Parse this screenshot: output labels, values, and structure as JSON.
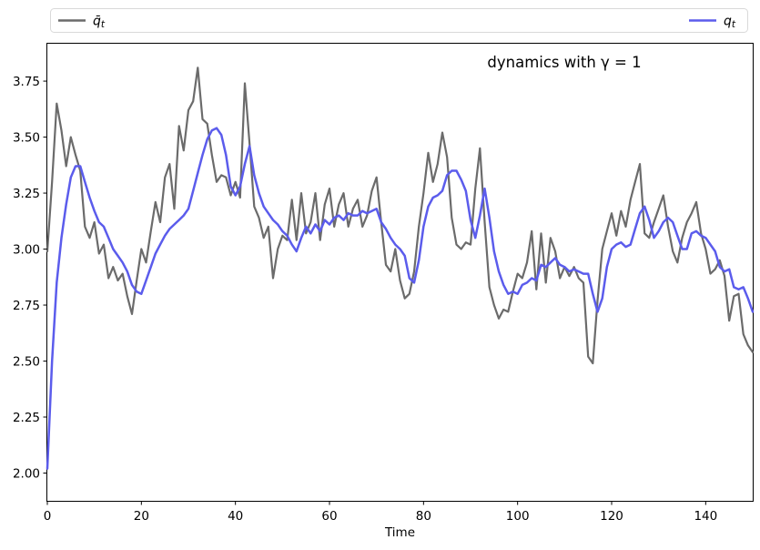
{
  "figure": {
    "annotation": "dynamics with γ = 1",
    "xlabel": "Time",
    "background": "#ffffff",
    "legend": {
      "position": "top, expanded full width, 2 columns",
      "border_color": "#d9d9d9",
      "items": [
        {
          "base": "q̄",
          "sub": "t",
          "color": "#6b6b6b"
        },
        {
          "base": "q",
          "sub": "t",
          "color": "#5b5cec"
        }
      ]
    }
  },
  "chart_data": {
    "type": "line",
    "title": "dynamics with γ = 1",
    "xlabel": "Time",
    "ylabel": "",
    "grid": false,
    "xlim": [
      0,
      150
    ],
    "ylim": [
      1.876,
      3.917
    ],
    "xticks": [
      {
        "v": 0,
        "label": "0"
      },
      {
        "v": 20,
        "label": "20"
      },
      {
        "v": 40,
        "label": "40"
      },
      {
        "v": 60,
        "label": "60"
      },
      {
        "v": 80,
        "label": "80"
      },
      {
        "v": 100,
        "label": "100"
      },
      {
        "v": 120,
        "label": "120"
      },
      {
        "v": 140,
        "label": "140"
      }
    ],
    "yticks": [
      {
        "v": 2.0,
        "label": "2.00"
      },
      {
        "v": 2.25,
        "label": "2.25"
      },
      {
        "v": 2.5,
        "label": "2.50"
      },
      {
        "v": 2.75,
        "label": "2.75"
      },
      {
        "v": 3.0,
        "label": "3.00"
      },
      {
        "v": 3.25,
        "label": "3.25"
      },
      {
        "v": 3.5,
        "label": "3.50"
      },
      {
        "v": 3.75,
        "label": "3.75"
      }
    ],
    "x": [
      0,
      1,
      2,
      3,
      4,
      5,
      6,
      7,
      8,
      9,
      10,
      11,
      12,
      13,
      14,
      15,
      16,
      17,
      18,
      19,
      20,
      21,
      22,
      23,
      24,
      25,
      26,
      27,
      28,
      29,
      30,
      31,
      32,
      33,
      34,
      35,
      36,
      37,
      38,
      39,
      40,
      41,
      42,
      43,
      44,
      45,
      46,
      47,
      48,
      49,
      50,
      51,
      52,
      53,
      54,
      55,
      56,
      57,
      58,
      59,
      60,
      61,
      62,
      63,
      64,
      65,
      66,
      67,
      68,
      69,
      70,
      71,
      72,
      73,
      74,
      75,
      76,
      77,
      78,
      79,
      80,
      81,
      82,
      83,
      84,
      85,
      86,
      87,
      88,
      89,
      90,
      91,
      92,
      93,
      94,
      95,
      96,
      97,
      98,
      99,
      100,
      101,
      102,
      103,
      104,
      105,
      106,
      107,
      108,
      109,
      110,
      111,
      112,
      113,
      114,
      115,
      116,
      117,
      118,
      119,
      120,
      121,
      122,
      123,
      124,
      125,
      126,
      127,
      128,
      129,
      130,
      131,
      132,
      133,
      134,
      135,
      136,
      137,
      138,
      139,
      140,
      141,
      142,
      143,
      144,
      145,
      146,
      147,
      148,
      149,
      150
    ],
    "series": [
      {
        "name": "q̄_t",
        "color": "#6b6b6b",
        "line_width": 2.2,
        "values": [
          2.99,
          3.3,
          3.65,
          3.53,
          3.37,
          3.5,
          3.42,
          3.35,
          3.1,
          3.05,
          3.12,
          2.98,
          3.02,
          2.87,
          2.92,
          2.86,
          2.89,
          2.79,
          2.71,
          2.86,
          3.0,
          2.94,
          3.08,
          3.21,
          3.12,
          3.32,
          3.38,
          3.18,
          3.55,
          3.44,
          3.62,
          3.66,
          3.81,
          3.58,
          3.56,
          3.42,
          3.3,
          3.33,
          3.32,
          3.24,
          3.3,
          3.23,
          3.74,
          3.47,
          3.19,
          3.14,
          3.05,
          3.1,
          2.87,
          3.0,
          3.06,
          3.04,
          3.22,
          3.04,
          3.25,
          3.07,
          3.12,
          3.25,
          3.04,
          3.2,
          3.27,
          3.1,
          3.2,
          3.25,
          3.1,
          3.18,
          3.22,
          3.1,
          3.15,
          3.26,
          3.32,
          3.12,
          2.93,
          2.9,
          3.0,
          2.86,
          2.78,
          2.8,
          2.9,
          3.1,
          3.25,
          3.43,
          3.3,
          3.38,
          3.52,
          3.41,
          3.14,
          3.02,
          3.0,
          3.03,
          3.02,
          3.27,
          3.45,
          3.12,
          2.83,
          2.75,
          2.69,
          2.73,
          2.72,
          2.81,
          2.89,
          2.87,
          2.94,
          3.08,
          2.82,
          3.07,
          2.85,
          3.05,
          2.99,
          2.87,
          2.92,
          2.88,
          2.92,
          2.87,
          2.85,
          2.52,
          2.49,
          2.77,
          3.0,
          3.08,
          3.16,
          3.06,
          3.17,
          3.1,
          3.22,
          3.3,
          3.38,
          3.07,
          3.05,
          3.12,
          3.18,
          3.24,
          3.1,
          2.99,
          2.94,
          3.05,
          3.12,
          3.16,
          3.21,
          3.07,
          3.0,
          2.89,
          2.91,
          2.95,
          2.88,
          2.68,
          2.79,
          2.8,
          2.62,
          2.57,
          2.54
        ]
      },
      {
        "name": "q_t",
        "color": "#5b5cec",
        "line_width": 2.5,
        "values": [
          2.02,
          2.5,
          2.85,
          3.05,
          3.2,
          3.32,
          3.37,
          3.37,
          3.3,
          3.23,
          3.17,
          3.12,
          3.1,
          3.05,
          3.0,
          2.97,
          2.94,
          2.9,
          2.84,
          2.81,
          2.8,
          2.86,
          2.92,
          2.98,
          3.02,
          3.06,
          3.09,
          3.11,
          3.13,
          3.15,
          3.18,
          3.26,
          3.34,
          3.42,
          3.49,
          3.53,
          3.54,
          3.51,
          3.42,
          3.28,
          3.24,
          3.28,
          3.38,
          3.46,
          3.33,
          3.25,
          3.19,
          3.16,
          3.13,
          3.11,
          3.08,
          3.06,
          3.02,
          2.99,
          3.05,
          3.1,
          3.07,
          3.11,
          3.08,
          3.13,
          3.11,
          3.14,
          3.15,
          3.13,
          3.16,
          3.15,
          3.15,
          3.17,
          3.16,
          3.17,
          3.18,
          3.12,
          3.09,
          3.05,
          3.02,
          3.0,
          2.97,
          2.87,
          2.85,
          2.95,
          3.1,
          3.19,
          3.23,
          3.24,
          3.26,
          3.33,
          3.35,
          3.35,
          3.31,
          3.26,
          3.13,
          3.05,
          3.15,
          3.27,
          3.14,
          2.99,
          2.9,
          2.84,
          2.8,
          2.81,
          2.8,
          2.84,
          2.85,
          2.87,
          2.86,
          2.93,
          2.92,
          2.94,
          2.96,
          2.93,
          2.92,
          2.9,
          2.91,
          2.9,
          2.89,
          2.89,
          2.8,
          2.72,
          2.78,
          2.92,
          3.0,
          3.02,
          3.03,
          3.01,
          3.02,
          3.09,
          3.16,
          3.19,
          3.13,
          3.05,
          3.08,
          3.12,
          3.14,
          3.12,
          3.06,
          3.0,
          3.0,
          3.07,
          3.08,
          3.06,
          3.05,
          3.02,
          2.99,
          2.92,
          2.9,
          2.91,
          2.83,
          2.82,
          2.83,
          2.78,
          2.72
        ]
      }
    ],
    "legend_entries": [
      "q̄_t",
      "q_t"
    ],
    "legend_position": "above axes, expanded, ncol=2"
  }
}
